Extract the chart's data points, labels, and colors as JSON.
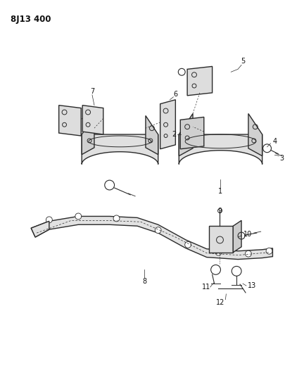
{
  "title": "8J13 400",
  "bg_color": "#ffffff",
  "line_color": "#2a2a2a",
  "fill_color": "#d8d8d8",
  "text_color": "#111111",
  "title_fontsize": 8.5,
  "label_fontsize": 7,
  "figsize": [
    4.06,
    5.33
  ],
  "dpi": 100
}
